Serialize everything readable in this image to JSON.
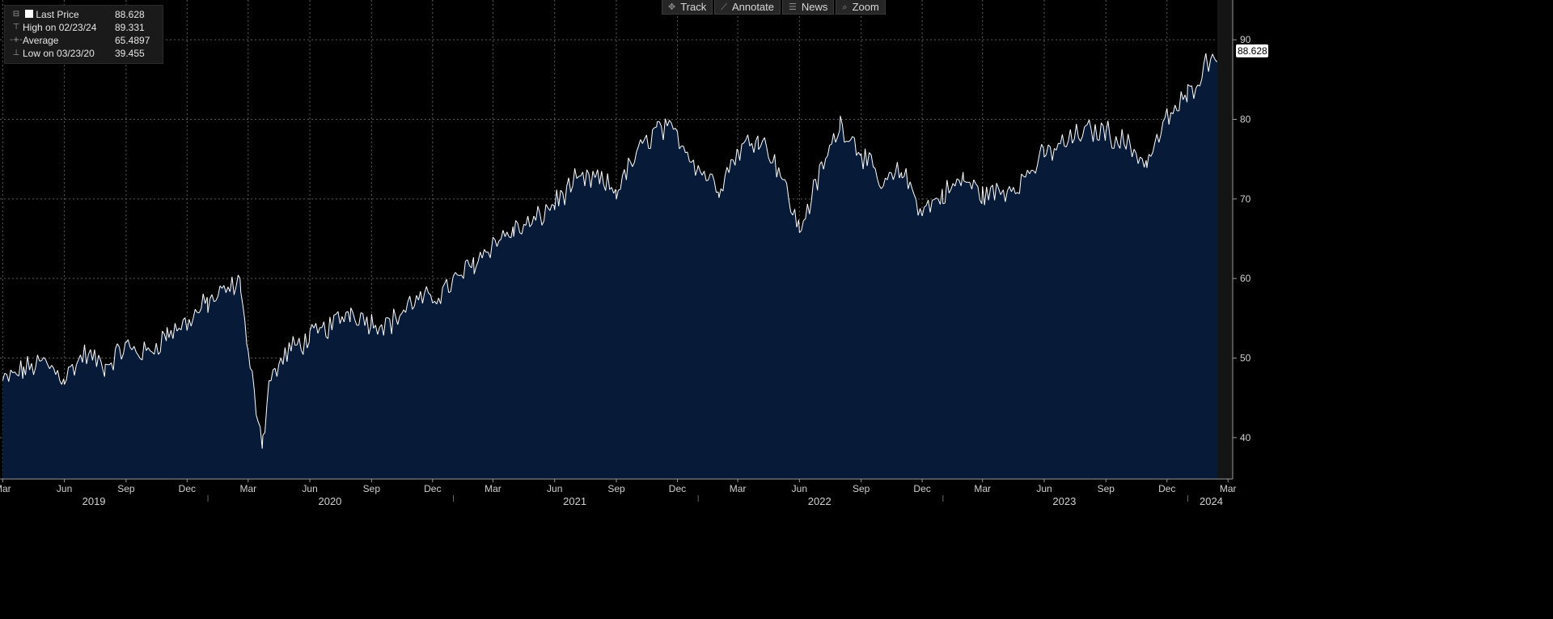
{
  "toolbar": {
    "track": "Track",
    "annotate": "Annotate",
    "news": "News",
    "zoom": "Zoom",
    "track_icon": "crosshair-icon",
    "annotate_icon": "pencil-icon",
    "news_icon": "news-icon",
    "zoom_icon": "magnifier-icon"
  },
  "legend": {
    "last_price_label": "Last Price",
    "last_price_value": "88.628",
    "high_label": "High on 02/23/24",
    "high_value": "89.331",
    "average_label": "Average",
    "average_value": "65.4897",
    "low_label": "Low on 03/23/20",
    "low_value": "39.455"
  },
  "last_value_label": "88.628",
  "colors": {
    "background": "#000000",
    "area_fill": "#071b38",
    "line": "#ffffff",
    "grid": "#5a5a5a",
    "last_value_box": "#ffffff"
  },
  "chart_data": {
    "type": "area",
    "title": "",
    "xlabel": "",
    "ylabel": "",
    "ylim": [
      34.8,
      95.0
    ],
    "xlim": [
      "2019-02-25",
      "2024-03-08"
    ],
    "y_ticks": [
      40,
      50,
      60,
      70,
      80,
      90
    ],
    "x_month_ticks": [
      {
        "date": "2019-03-01",
        "label": "Mar"
      },
      {
        "date": "2019-06-01",
        "label": "Jun"
      },
      {
        "date": "2019-09-01",
        "label": "Sep"
      },
      {
        "date": "2019-12-01",
        "label": "Dec"
      },
      {
        "date": "2020-03-01",
        "label": "Mar"
      },
      {
        "date": "2020-06-01",
        "label": "Jun"
      },
      {
        "date": "2020-09-01",
        "label": "Sep"
      },
      {
        "date": "2020-12-01",
        "label": "Dec"
      },
      {
        "date": "2021-03-01",
        "label": "Mar"
      },
      {
        "date": "2021-06-01",
        "label": "Jun"
      },
      {
        "date": "2021-09-01",
        "label": "Sep"
      },
      {
        "date": "2021-12-01",
        "label": "Dec"
      },
      {
        "date": "2022-03-01",
        "label": "Mar"
      },
      {
        "date": "2022-06-01",
        "label": "Jun"
      },
      {
        "date": "2022-09-01",
        "label": "Sep"
      },
      {
        "date": "2022-12-01",
        "label": "Dec"
      },
      {
        "date": "2023-03-01",
        "label": "Mar"
      },
      {
        "date": "2023-06-01",
        "label": "Jun"
      },
      {
        "date": "2023-09-01",
        "label": "Sep"
      },
      {
        "date": "2023-12-01",
        "label": "Dec"
      },
      {
        "date": "2024-03-01",
        "label": "Mar"
      }
    ],
    "x_year_labels": [
      {
        "date": "2019-07-15",
        "label": "2019"
      },
      {
        "date": "2020-07-01",
        "label": "2020"
      },
      {
        "date": "2021-07-01",
        "label": "2021"
      },
      {
        "date": "2022-07-01",
        "label": "2022"
      },
      {
        "date": "2023-07-01",
        "label": "2023"
      },
      {
        "date": "2024-02-05",
        "label": "2024"
      }
    ],
    "year_separators": [
      "2020-01-01",
      "2021-01-01",
      "2022-01-01",
      "2023-01-01",
      "2024-01-01"
    ],
    "grid": true,
    "series": [
      {
        "x": [
          "2019-03-01",
          "2019-04-01",
          "2019-05-01",
          "2019-06-01",
          "2019-07-01",
          "2019-08-01",
          "2019-09-01",
          "2019-10-01",
          "2019-11-01",
          "2019-12-01",
          "2020-01-01",
          "2020-02-19",
          "2020-03-01",
          "2020-03-23",
          "2020-04-01",
          "2020-05-01",
          "2020-06-01",
          "2020-07-01",
          "2020-08-01",
          "2020-09-01",
          "2020-10-01",
          "2020-11-01",
          "2020-12-01",
          "2021-01-01",
          "2021-02-01",
          "2021-03-01",
          "2021-04-01",
          "2021-05-01",
          "2021-06-01",
          "2021-07-01",
          "2021-08-01",
          "2021-09-01",
          "2021-10-01",
          "2021-11-01",
          "2021-12-01",
          "2022-01-01",
          "2022-02-01",
          "2022-03-01",
          "2022-04-01",
          "2022-05-01",
          "2022-06-01",
          "2022-07-01",
          "2022-08-01",
          "2022-09-01",
          "2022-10-01",
          "2022-11-01",
          "2022-12-01",
          "2023-01-01",
          "2023-02-01",
          "2023-03-01",
          "2023-04-01",
          "2023-05-01",
          "2023-06-01",
          "2023-07-01",
          "2023-08-01",
          "2023-09-01",
          "2023-10-01",
          "2023-11-01",
          "2023-12-01",
          "2024-01-01",
          "2024-02-01",
          "2024-02-23",
          "2024-03-01"
        ],
        "values": [
          47.0,
          48.5,
          49.5,
          47.5,
          50.5,
          49.0,
          51.5,
          50.5,
          53.0,
          54.5,
          57.0,
          59.5,
          50.0,
          39.5,
          47.0,
          51.0,
          52.5,
          54.0,
          56.0,
          54.5,
          54.5,
          57.0,
          57.5,
          59.5,
          62.0,
          64.5,
          66.0,
          67.0,
          69.5,
          72.0,
          72.5,
          71.0,
          75.5,
          79.0,
          78.0,
          74.0,
          71.5,
          76.0,
          78.0,
          74.0,
          66.0,
          73.0,
          79.5,
          76.0,
          71.5,
          73.5,
          68.5,
          70.5,
          72.5,
          70.5,
          71.0,
          72.5,
          75.5,
          77.0,
          78.5,
          78.5,
          77.0,
          74.5,
          80.0,
          83.0,
          87.5,
          89.3,
          88.6
        ]
      }
    ]
  }
}
